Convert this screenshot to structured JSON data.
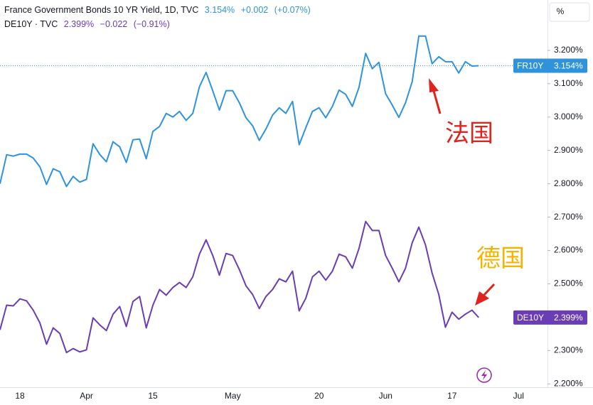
{
  "chart_data": {
    "type": "line",
    "categories": [
      null,
      null,
      null,
      "18",
      null,
      null,
      null,
      null,
      null,
      null,
      null,
      null,
      null,
      "Apr",
      null,
      null,
      null,
      null,
      null,
      null,
      null,
      null,
      null,
      "15",
      null,
      null,
      null,
      null,
      null,
      null,
      null,
      null,
      null,
      null,
      null,
      "May",
      null,
      null,
      null,
      null,
      null,
      null,
      null,
      null,
      null,
      null,
      null,
      null,
      "20",
      null,
      null,
      null,
      null,
      null,
      null,
      null,
      null,
      null,
      "Jun",
      null,
      null,
      null,
      null,
      null,
      null,
      null,
      null,
      null,
      "17",
      null,
      null,
      null,
      null,
      null,
      null,
      null,
      null,
      null,
      "Jul"
    ],
    "series": [
      {
        "name": "France Government Bonds 10 YR Yield, 1D, TVC",
        "short_name": "FR10Y",
        "color": "#2f93dc",
        "header_values": [
          "3.154%",
          "+0.002",
          "(+0.07%)"
        ],
        "values": [
          2.8,
          2.887,
          2.883,
          2.889,
          2.889,
          2.877,
          2.851,
          2.798,
          2.845,
          2.836,
          2.792,
          2.822,
          2.805,
          2.813,
          2.92,
          2.888,
          2.866,
          2.926,
          2.911,
          2.864,
          2.932,
          2.934,
          2.875,
          2.957,
          2.972,
          3.011,
          3.0,
          3.017,
          2.99,
          3.011,
          3.091,
          3.134,
          3.079,
          3.021,
          3.079,
          3.079,
          3.043,
          2.998,
          2.974,
          2.93,
          2.964,
          3.006,
          3.028,
          3.011,
          3.047,
          2.917,
          2.968,
          3.017,
          3.028,
          2.998,
          3.032,
          3.081,
          3.068,
          3.032,
          3.089,
          3.191,
          3.145,
          3.164,
          3.07,
          3.036,
          2.999,
          3.043,
          3.106,
          3.243,
          3.243,
          3.16,
          3.181,
          3.166,
          3.166,
          3.132,
          3.166,
          3.153,
          3.154,
          null,
          null,
          null,
          null,
          null,
          null
        ]
      },
      {
        "name": "DE10Y · TVC",
        "short_name": "DE10Y",
        "color": "#6a3db4",
        "header_values": [
          "2.399%",
          "−0.022",
          "(−0.91%)"
        ],
        "values": [
          2.362,
          2.436,
          2.434,
          2.455,
          2.449,
          2.421,
          2.383,
          2.319,
          2.368,
          2.351,
          2.294,
          2.306,
          2.296,
          2.302,
          2.398,
          2.377,
          2.36,
          2.409,
          2.432,
          2.372,
          2.447,
          2.462,
          2.368,
          2.436,
          2.483,
          2.466,
          2.489,
          2.504,
          2.489,
          2.521,
          2.589,
          2.632,
          2.585,
          2.526,
          2.591,
          2.585,
          2.543,
          2.494,
          2.468,
          2.426,
          2.462,
          2.483,
          2.515,
          2.506,
          2.538,
          2.419,
          2.457,
          2.521,
          2.538,
          2.511,
          2.538,
          2.589,
          2.581,
          2.547,
          2.606,
          2.687,
          2.66,
          2.66,
          2.585,
          2.547,
          2.506,
          2.547,
          2.623,
          2.67,
          2.617,
          2.532,
          2.468,
          2.37,
          2.415,
          2.394,
          2.409,
          2.421,
          2.399,
          null,
          null,
          null,
          null,
          null,
          null
        ]
      }
    ],
    "ylim": [
      2.19,
      3.351
    ],
    "yticks": [
      {
        "value": 2.2,
        "label": "2.200%"
      },
      {
        "value": 2.3,
        "label": "2.300%"
      },
      {
        "value": 2.4,
        "label": "2.400%"
      },
      {
        "value": 2.5,
        "label": "2.500%"
      },
      {
        "value": 2.6,
        "label": "2.600%"
      },
      {
        "value": 2.7,
        "label": "2.700%"
      },
      {
        "value": 2.8,
        "label": "2.800%"
      },
      {
        "value": 2.9,
        "label": "2.900%"
      },
      {
        "value": 3.0,
        "label": "3.000%"
      },
      {
        "value": 3.1,
        "label": "3.100%"
      },
      {
        "value": 3.2,
        "label": "3.200%"
      }
    ],
    "axis_unit": "%",
    "annotations": [
      "法国",
      "德国"
    ],
    "grid": false
  }
}
